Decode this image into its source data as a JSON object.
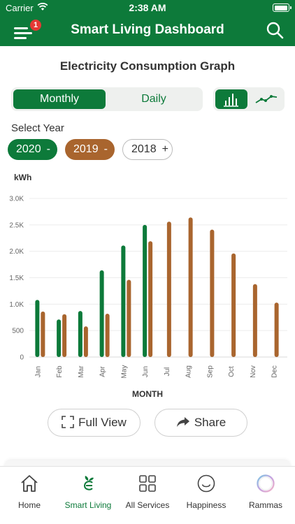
{
  "status_bar": {
    "carrier": "Carrier",
    "time": "2:38 AM",
    "battery_level": 1.0
  },
  "header": {
    "title": "Smart Living Dashboard",
    "notification_count": "1"
  },
  "graph": {
    "title": "Electricity Consumption Graph",
    "period_tabs": [
      {
        "label": "Monthly",
        "active": true
      },
      {
        "label": "Daily",
        "active": false
      }
    ],
    "chart_types": [
      {
        "icon": "bar-chart-icon",
        "active": true
      },
      {
        "icon": "line-chart-icon",
        "active": false
      }
    ],
    "select_year_label": "Select Year",
    "years": [
      {
        "label": "2020",
        "sign": "-",
        "selected": true,
        "color": "#0d7a3a"
      },
      {
        "label": "2019",
        "sign": "-",
        "selected": true,
        "color": "#a9652e"
      },
      {
        "label": "2018",
        "sign": "+",
        "selected": false,
        "color": "#ffffff"
      }
    ],
    "full_view_label": "Full View",
    "share_label": "Share"
  },
  "chart_data": {
    "type": "bar",
    "ylabel": "kWh",
    "xlabel": "MONTH",
    "ylim": [
      0,
      3000
    ],
    "yticks": [
      0,
      500,
      1000,
      1500,
      2000,
      2500,
      3000
    ],
    "ytick_labels": [
      "0",
      "500",
      "1.0K",
      "1.5K",
      "2.0K",
      "2.5K",
      "3.0K"
    ],
    "grid": true,
    "categories": [
      "Jan",
      "Feb",
      "Mar",
      "Apr",
      "May",
      "Jun",
      "Jul",
      "Aug",
      "Sep",
      "Oct",
      "Nov",
      "Dec"
    ],
    "series": [
      {
        "name": "2020",
        "color": "#0d7a3a",
        "values": [
          1080,
          710,
          870,
          1640,
          2110,
          2500,
          null,
          null,
          null,
          null,
          null,
          null
        ]
      },
      {
        "name": "2019",
        "color": "#a9652e",
        "values": [
          860,
          810,
          580,
          820,
          1460,
          2190,
          2560,
          2640,
          2410,
          1960,
          1380,
          1030
        ]
      }
    ]
  },
  "tabbar": {
    "tabs": [
      {
        "label": "Home",
        "icon": "home-icon",
        "active": false
      },
      {
        "label": "Smart Living",
        "icon": "smart-living-icon",
        "active": true
      },
      {
        "label": "All Services",
        "icon": "grid-icon",
        "active": false
      },
      {
        "label": "Happiness",
        "icon": "smiley-icon",
        "active": false
      },
      {
        "label": "Rammas",
        "icon": "rammas-icon",
        "active": false
      }
    ]
  },
  "colors": {
    "primary": "#0d7a3a",
    "secondary": "#a9652e",
    "badge": "#e53935"
  }
}
